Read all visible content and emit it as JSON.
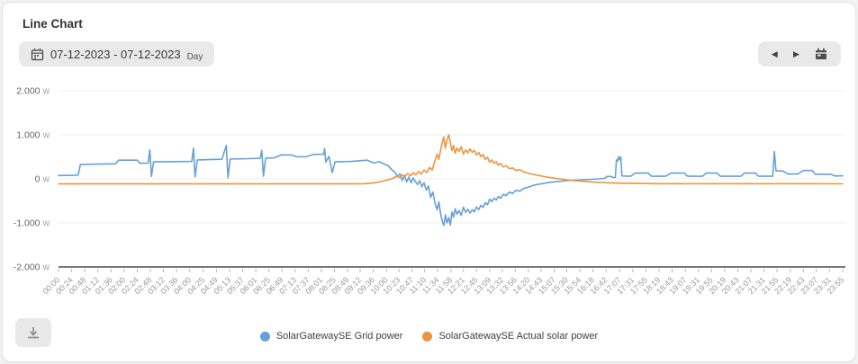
{
  "card": {
    "title": "Line Chart"
  },
  "toolbar": {
    "date_button": {
      "label": "07-12-2023 - 07-12-2023",
      "period": "Day",
      "icon": "calendar-icon"
    },
    "nav": {
      "prev_icon": "chevron-left-icon",
      "next_icon": "chevron-right-icon",
      "calendar_icon": "calendar-icon"
    }
  },
  "footer": {
    "download_icon": "download-icon"
  },
  "chart_data": {
    "type": "line",
    "title": "Line Chart",
    "grid": true,
    "legend_position": "bottom",
    "x_axis": {
      "unit": "time",
      "range_minutes": [
        0,
        1440
      ],
      "tick_labels": [
        "00:00",
        "00:24",
        "00:48",
        "01:12",
        "01:36",
        "02:00",
        "02:24",
        "02:48",
        "03:12",
        "03:36",
        "04:00",
        "04:25",
        "04:49",
        "05:13",
        "05:37",
        "06:01",
        "06:25",
        "06:49",
        "07:13",
        "07:37",
        "08:01",
        "08:25",
        "08:49",
        "09:12",
        "09:36",
        "10:00",
        "10:23",
        "10:47",
        "11:10",
        "11:34",
        "11:58",
        "12:21",
        "12:45",
        "13:09",
        "13:32",
        "13:56",
        "14:20",
        "14:43",
        "15:07",
        "15:30",
        "15:54",
        "16:18",
        "16:42",
        "17:07",
        "17:31",
        "17:55",
        "18:19",
        "18:43",
        "19:07",
        "19:31",
        "19:55",
        "20:19",
        "20:43",
        "21:07",
        "21:31",
        "21:55",
        "22:19",
        "22:43",
        "23:07",
        "23:31",
        "23:55"
      ]
    },
    "y_axis": {
      "unit": "W",
      "range": [
        -2000,
        2000
      ],
      "tick_values": [
        2000,
        1000,
        0,
        -1000,
        -2000
      ],
      "tick_labels": [
        "2.000",
        "1.000",
        "0",
        "-1.000",
        "-2.000"
      ]
    },
    "series": [
      {
        "name": "SolarGatewaySE Grid power",
        "color": "#66A1D6",
        "points_min_watts": [
          [
            0,
            75
          ],
          [
            28,
            80
          ],
          [
            36,
            85
          ],
          [
            40,
            325
          ],
          [
            72,
            335
          ],
          [
            104,
            340
          ],
          [
            110,
            425
          ],
          [
            144,
            425
          ],
          [
            149,
            355
          ],
          [
            164,
            360
          ],
          [
            167,
            655
          ],
          [
            170,
            55
          ],
          [
            174,
            385
          ],
          [
            204,
            390
          ],
          [
            244,
            395
          ],
          [
            247,
            700
          ],
          [
            250,
            45
          ],
          [
            254,
            430
          ],
          [
            299,
            445
          ],
          [
            307,
            755
          ],
          [
            310,
            25
          ],
          [
            314,
            450
          ],
          [
            348,
            460
          ],
          [
            369,
            465
          ],
          [
            372,
            650
          ],
          [
            375,
            60
          ],
          [
            379,
            470
          ],
          [
            394,
            475
          ],
          [
            408,
            545
          ],
          [
            427,
            540
          ],
          [
            436,
            500
          ],
          [
            454,
            505
          ],
          [
            467,
            555
          ],
          [
            485,
            560
          ],
          [
            487,
            690
          ],
          [
            489,
            380
          ],
          [
            495,
            510
          ],
          [
            501,
            140
          ],
          [
            506,
            385
          ],
          [
            519,
            390
          ],
          [
            537,
            395
          ],
          [
            553,
            415
          ],
          [
            565,
            425
          ],
          [
            577,
            360
          ],
          [
            587,
            390
          ],
          [
            595,
            340
          ],
          [
            603,
            300
          ],
          [
            609,
            220
          ],
          [
            615,
            160
          ],
          [
            620,
            60
          ],
          [
            625,
            115
          ],
          [
            629,
            -40
          ],
          [
            633,
            80
          ],
          [
            637,
            -70
          ],
          [
            641,
            40
          ],
          [
            645,
            -90
          ],
          [
            649,
            20
          ],
          [
            653,
            -60
          ],
          [
            657,
            -130
          ],
          [
            661,
            -40
          ],
          [
            665,
            -180
          ],
          [
            669,
            -90
          ],
          [
            673,
            -260
          ],
          [
            677,
            -160
          ],
          [
            681,
            -420
          ],
          [
            685,
            -300
          ],
          [
            689,
            -560
          ],
          [
            693,
            -700
          ],
          [
            696,
            -520
          ],
          [
            699,
            -780
          ],
          [
            702,
            -950
          ],
          [
            705,
            -1060
          ],
          [
            708,
            -820
          ],
          [
            711,
            -1000
          ],
          [
            714,
            -880
          ],
          [
            717,
            -1050
          ],
          [
            720,
            -750
          ],
          [
            723,
            -870
          ],
          [
            726,
            -680
          ],
          [
            729,
            -800
          ],
          [
            733,
            -720
          ],
          [
            737,
            -830
          ],
          [
            741,
            -640
          ],
          [
            745,
            -760
          ],
          [
            749,
            -690
          ],
          [
            753,
            -780
          ],
          [
            757,
            -700
          ],
          [
            761,
            -750
          ],
          [
            765,
            -640
          ],
          [
            769,
            -700
          ],
          [
            773,
            -600
          ],
          [
            777,
            -650
          ],
          [
            781,
            -540
          ],
          [
            785,
            -590
          ],
          [
            789,
            -460
          ],
          [
            793,
            -520
          ],
          [
            797,
            -440
          ],
          [
            801,
            -480
          ],
          [
            805,
            -400
          ],
          [
            809,
            -440
          ],
          [
            814,
            -350
          ],
          [
            819,
            -380
          ],
          [
            825,
            -300
          ],
          [
            831,
            -330
          ],
          [
            837,
            -260
          ],
          [
            844,
            -280
          ],
          [
            851,
            -220
          ],
          [
            859,
            -190
          ],
          [
            869,
            -150
          ],
          [
            879,
            -120
          ],
          [
            889,
            -100
          ],
          [
            899,
            -80
          ],
          [
            914,
            -60
          ],
          [
            929,
            -40
          ],
          [
            944,
            -30
          ],
          [
            959,
            -20
          ],
          [
            974,
            -10
          ],
          [
            989,
            0
          ],
          [
            1000,
            15
          ],
          [
            1004,
            55
          ],
          [
            1011,
            55
          ],
          [
            1015,
            30
          ],
          [
            1019,
            30
          ],
          [
            1021,
            430
          ],
          [
            1023,
            400
          ],
          [
            1025,
            500
          ],
          [
            1027,
            430
          ],
          [
            1029,
            500
          ],
          [
            1031,
            65
          ],
          [
            1047,
            60
          ],
          [
            1055,
            130
          ],
          [
            1079,
            130
          ],
          [
            1085,
            60
          ],
          [
            1111,
            60
          ],
          [
            1121,
            130
          ],
          [
            1145,
            130
          ],
          [
            1151,
            60
          ],
          [
            1179,
            60
          ],
          [
            1185,
            130
          ],
          [
            1205,
            130
          ],
          [
            1211,
            60
          ],
          [
            1249,
            60
          ],
          [
            1255,
            130
          ],
          [
            1275,
            130
          ],
          [
            1281,
            60
          ],
          [
            1307,
            60
          ],
          [
            1310,
            620
          ],
          [
            1313,
            180
          ],
          [
            1325,
            180
          ],
          [
            1335,
            110
          ],
          [
            1353,
            110
          ],
          [
            1363,
            190
          ],
          [
            1379,
            190
          ],
          [
            1385,
            105
          ],
          [
            1413,
            105
          ],
          [
            1421,
            65
          ],
          [
            1435,
            70
          ]
        ]
      },
      {
        "name": "SolarGatewaySE Actual solar power",
        "color": "#EC9540",
        "points_min_watts": [
          [
            0,
            -115
          ],
          [
            538,
            -115
          ],
          [
            558,
            -110
          ],
          [
            571,
            -100
          ],
          [
            581,
            -85
          ],
          [
            591,
            -60
          ],
          [
            599,
            -35
          ],
          [
            607,
            -10
          ],
          [
            613,
            20
          ],
          [
            619,
            60
          ],
          [
            624,
            30
          ],
          [
            629,
            90
          ],
          [
            634,
            50
          ],
          [
            639,
            120
          ],
          [
            644,
            70
          ],
          [
            649,
            140
          ],
          [
            654,
            90
          ],
          [
            659,
            170
          ],
          [
            664,
            110
          ],
          [
            669,
            200
          ],
          [
            674,
            140
          ],
          [
            679,
            260
          ],
          [
            684,
            200
          ],
          [
            689,
            420
          ],
          [
            693,
            560
          ],
          [
            696,
            440
          ],
          [
            699,
            640
          ],
          [
            702,
            820
          ],
          [
            705,
            950
          ],
          [
            708,
            700
          ],
          [
            711,
            880
          ],
          [
            714,
            1000
          ],
          [
            717,
            820
          ],
          [
            720,
            640
          ],
          [
            723,
            760
          ],
          [
            726,
            580
          ],
          [
            729,
            700
          ],
          [
            733,
            620
          ],
          [
            737,
            730
          ],
          [
            741,
            560
          ],
          [
            745,
            660
          ],
          [
            749,
            590
          ],
          [
            753,
            680
          ],
          [
            757,
            600
          ],
          [
            761,
            650
          ],
          [
            765,
            540
          ],
          [
            769,
            600
          ],
          [
            773,
            500
          ],
          [
            777,
            550
          ],
          [
            781,
            440
          ],
          [
            785,
            490
          ],
          [
            789,
            380
          ],
          [
            793,
            430
          ],
          [
            797,
            350
          ],
          [
            801,
            390
          ],
          [
            805,
            310
          ],
          [
            809,
            350
          ],
          [
            814,
            270
          ],
          [
            819,
            300
          ],
          [
            825,
            230
          ],
          [
            831,
            250
          ],
          [
            837,
            190
          ],
          [
            844,
            210
          ],
          [
            851,
            160
          ],
          [
            859,
            130
          ],
          [
            869,
            100
          ],
          [
            879,
            75
          ],
          [
            889,
            50
          ],
          [
            899,
            30
          ],
          [
            914,
            5
          ],
          [
            929,
            -20
          ],
          [
            944,
            -40
          ],
          [
            959,
            -55
          ],
          [
            974,
            -70
          ],
          [
            989,
            -80
          ],
          [
            1009,
            -90
          ],
          [
            1029,
            -98
          ],
          [
            1059,
            -105
          ],
          [
            1099,
            -110
          ],
          [
            1435,
            -113
          ]
        ]
      }
    ]
  }
}
